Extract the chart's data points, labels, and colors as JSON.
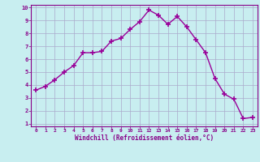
{
  "x": [
    0,
    1,
    2,
    3,
    4,
    5,
    6,
    7,
    8,
    9,
    10,
    11,
    12,
    13,
    14,
    15,
    16,
    17,
    18,
    19,
    20,
    21,
    22,
    23
  ],
  "y": [
    3.6,
    3.9,
    4.4,
    5.0,
    5.5,
    6.5,
    6.5,
    6.6,
    7.4,
    7.6,
    8.3,
    8.9,
    9.8,
    9.4,
    8.7,
    9.3,
    8.5,
    7.5,
    6.5,
    4.5,
    3.3,
    2.9,
    1.4,
    1.5
  ],
  "line_color": "#990099",
  "marker": "+",
  "marker_size": 4,
  "bg_color": "#c8eef0",
  "grid_color": "#aaaacc",
  "xlabel": "Windchill (Refroidissement éolien,°C)",
  "xlim": [
    -0.5,
    23.5
  ],
  "ylim": [
    0.8,
    10.2
  ],
  "xticks": [
    0,
    1,
    2,
    3,
    4,
    5,
    6,
    7,
    8,
    9,
    10,
    11,
    12,
    13,
    14,
    15,
    16,
    17,
    18,
    19,
    20,
    21,
    22,
    23
  ],
  "yticks": [
    1,
    2,
    3,
    4,
    5,
    6,
    7,
    8,
    9,
    10
  ],
  "tick_color": "#880088",
  "label_color": "#880088"
}
